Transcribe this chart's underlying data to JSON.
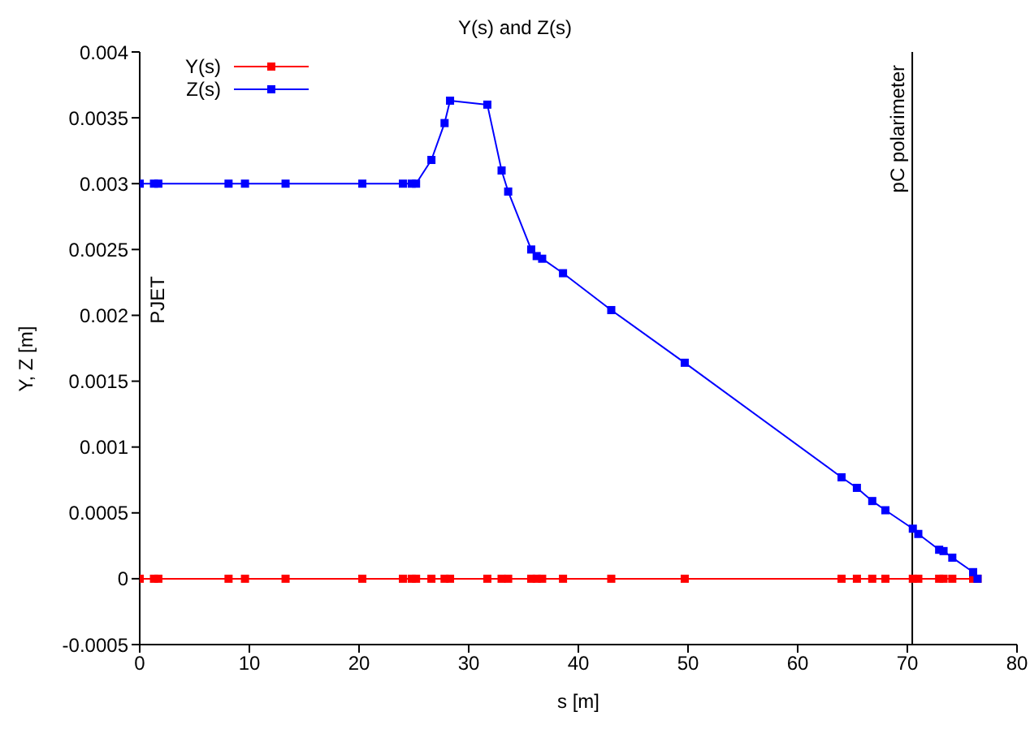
{
  "chart_data": {
    "type": "line",
    "title": "Y(s) and Z(s)",
    "xlabel": "s  [m]",
    "ylabel": "Y,  Z  [m]",
    "x": [
      0,
      1.3,
      1.7,
      8.1,
      9.6,
      13.3,
      20.3,
      24.0,
      24.8,
      25.2,
      26.6,
      27.8,
      28.3,
      31.7,
      33.0,
      33.6,
      35.7,
      36.2,
      36.7,
      38.6,
      43.0,
      49.7,
      64.0,
      65.4,
      66.8,
      68.0,
      70.5,
      71.0,
      72.9,
      73.3,
      74.1,
      76.0,
      76.4
    ],
    "series": [
      {
        "name": "Y(s)",
        "color": "#ff0000",
        "values": [
          0,
          0,
          0,
          0,
          0,
          0,
          0,
          0,
          0,
          0,
          0,
          0,
          0,
          0,
          0,
          0,
          0,
          0,
          0,
          0,
          0,
          0,
          0,
          0,
          0,
          0,
          0,
          0,
          0,
          0,
          0,
          0,
          0
        ]
      },
      {
        "name": "Z(s)",
        "color": "#0000ff",
        "values": [
          0.003,
          0.003,
          0.003,
          0.003,
          0.003,
          0.003,
          0.003,
          0.003,
          0.003,
          0.003,
          0.00318,
          0.00346,
          0.00363,
          0.0036,
          0.0031,
          0.00294,
          0.0025,
          0.00245,
          0.00243,
          0.00232,
          0.00204,
          0.00164,
          0.00077,
          0.00069,
          0.00059,
          0.00052,
          0.00038,
          0.00034,
          0.00022,
          0.00021,
          0.00016,
          5e-05,
          0
        ]
      }
    ],
    "xlim": [
      0,
      80
    ],
    "xticks": [
      0,
      10,
      20,
      30,
      40,
      50,
      60,
      70,
      80
    ],
    "ylim": [
      -0.0005,
      0.004
    ],
    "yticks": [
      -0.0005,
      0,
      0.0005,
      0.001,
      0.0015,
      0.002,
      0.0025,
      0.003,
      0.0035,
      0.004
    ],
    "ref_lines": [
      {
        "axis": "x",
        "value": 70.45,
        "label": "pC polarimeter",
        "color": "#000000"
      }
    ],
    "annotations": [
      "PJET"
    ],
    "grid": false,
    "legend": "top left",
    "marker": "square",
    "line_style": "solid"
  }
}
